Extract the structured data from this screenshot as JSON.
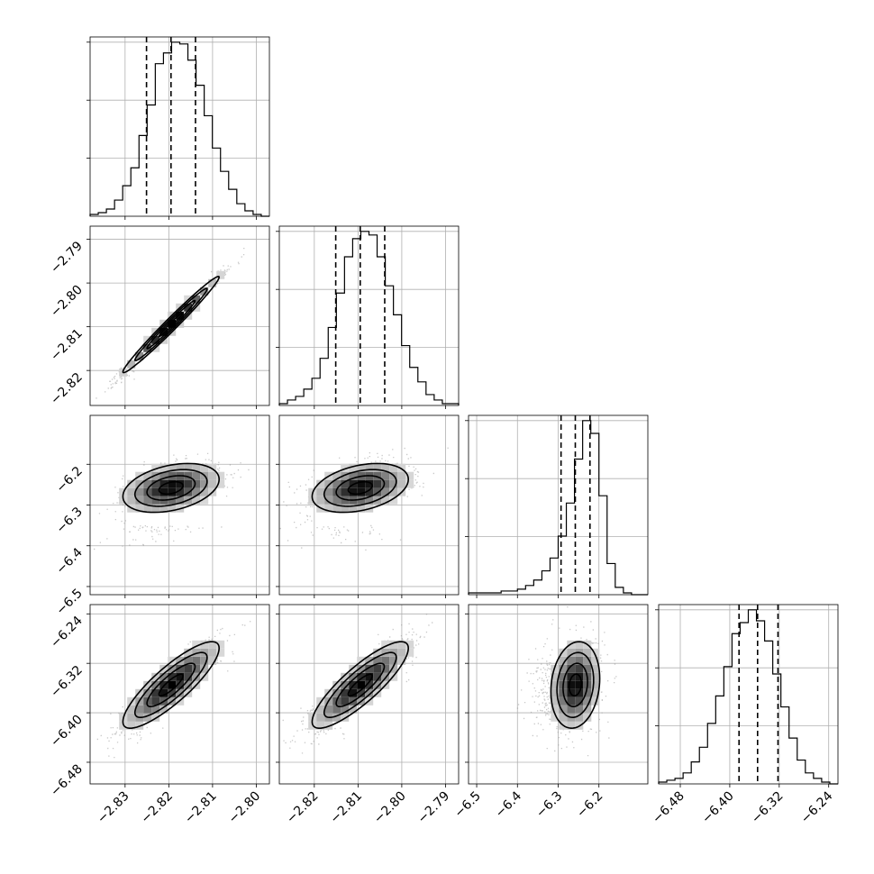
{
  "chart_data": {
    "type": "corner",
    "grid": true,
    "n_params": 4,
    "quantiles": [
      0.16,
      0.5,
      0.84
    ],
    "params": [
      {
        "range": [
          -2.838,
          -2.797
        ],
        "ticks": [
          -2.83,
          -2.82,
          -2.81,
          -2.8
        ],
        "tick_labels": [
          "−2.83",
          "−2.82",
          "−2.81",
          "−2.80"
        ],
        "median": -2.8195,
        "sigma": 0.0055,
        "q16": -2.8251,
        "q50": -2.8195,
        "q84": -2.8139,
        "hist": [
          1,
          2,
          4,
          9,
          17,
          27,
          45,
          62,
          85,
          91,
          97,
          96,
          87,
          73,
          56,
          38,
          25,
          15,
          7,
          3,
          1,
          0
        ]
      },
      {
        "range": [
          -2.828,
          -2.787
        ],
        "ticks": [
          -2.82,
          -2.81,
          -2.8,
          -2.79
        ],
        "tick_labels": [
          "−2.82",
          "−2.81",
          "−2.80",
          "−2.79"
        ],
        "median": -2.8095,
        "sigma": 0.0055,
        "q16": -2.8151,
        "q50": -2.8095,
        "q84": -2.8039,
        "hist": [
          1,
          3,
          5,
          9,
          15,
          26,
          43,
          62,
          82,
          92,
          96,
          94,
          82,
          66,
          50,
          33,
          21,
          13,
          6,
          3,
          1,
          1
        ]
      },
      {
        "range": [
          -6.52,
          -6.08
        ],
        "ticks": [
          -6.5,
          -6.4,
          -6.3,
          -6.2
        ],
        "tick_labels": [
          "−6.5",
          "−6.4",
          "−6.3",
          "−6.2"
        ],
        "median": -6.258,
        "sigma": 0.03,
        "q16": -6.293,
        "q50": -6.258,
        "q84": -6.222,
        "hist": [
          1,
          1,
          1,
          1,
          2,
          2,
          3,
          5,
          8,
          13,
          20,
          32,
          50,
          74,
          95,
          88,
          54,
          17,
          4,
          1,
          0,
          0
        ]
      },
      {
        "range": [
          -6.515,
          -6.225
        ],
        "ticks": [
          -6.48,
          -6.4,
          -6.32,
          -6.24
        ],
        "tick_labels": [
          "−6.48",
          "−6.40",
          "−6.32",
          "−6.24"
        ],
        "median": -6.355,
        "sigma": 0.035,
        "q16": -6.385,
        "q50": -6.355,
        "q84": -6.322,
        "hist": [
          1,
          2,
          3,
          6,
          12,
          20,
          33,
          48,
          64,
          82,
          88,
          95,
          89,
          78,
          60,
          42,
          25,
          13,
          6,
          3,
          1,
          0
        ]
      }
    ],
    "correlations": {
      "1,0": 0.985,
      "2,0": 0.35,
      "2,1": 0.35,
      "3,0": 0.85,
      "3,1": 0.85,
      "3,2": 0.15
    },
    "colors": {
      "line": "#000000",
      "grid": "#b0b0b0",
      "points": "#9a9a9a",
      "density_dark": "#000000",
      "density_light": "#f2f2f2"
    }
  }
}
